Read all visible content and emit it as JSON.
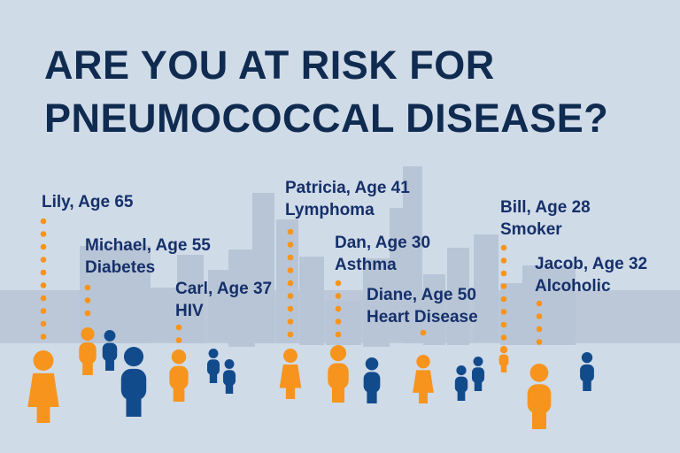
{
  "title": {
    "line1": "ARE YOU AT RISK FOR",
    "line2": "PNEUMOCOCCAL DISEASE?"
  },
  "colors": {
    "background": "#d0dbe8",
    "text": "#102b50",
    "at_risk": "#f7941d",
    "others": "#124b8c",
    "skyline": "#b8c5d6"
  },
  "people": [
    {
      "name_age": "Lily, Age 65",
      "condition": ""
    },
    {
      "name_age": "Michael, Age 55",
      "condition": "Diabetes"
    },
    {
      "name_age": "Carl, Age 37",
      "condition": "HIV"
    },
    {
      "name_age": "Patricia, Age 41",
      "condition": "Lymphoma"
    },
    {
      "name_age": "Dan, Age 30",
      "condition": "Asthma"
    },
    {
      "name_age": "Diane, Age 50",
      "condition": "Heart Disease"
    },
    {
      "name_age": "Bill, Age 28",
      "condition": "Smoker"
    },
    {
      "name_age": "Jacob, Age 32",
      "condition": "Alcoholic"
    }
  ]
}
